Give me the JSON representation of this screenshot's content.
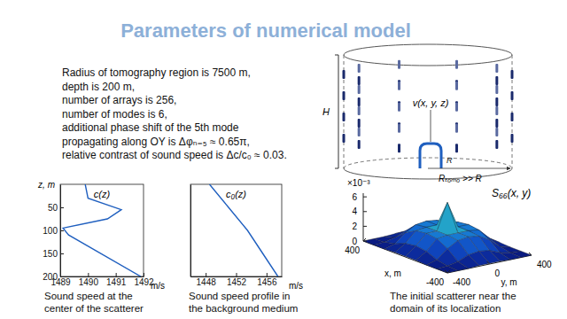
{
  "slide": {
    "title": "Parameters of numerical model",
    "text": [
      "Radius of tomography region is 7500 m,",
      "depth is 200 m,",
      "number of arrays is 256,",
      "number of modes is 6,",
      "additional phase shift of the 5th mode",
      "propagating along OY is Δφₙ₌₅ ≈ 0.65π,",
      "relative contrast of sound speed is Δc/c₀ ≈ 0.03."
    ],
    "diagram": {
      "scatterer_label": "v(x, y, z)",
      "depth_label": "H",
      "radius_label": "Rₜₒₘₒ >> R",
      "scatterer_radius_label": "R"
    }
  },
  "chart_data": [
    {
      "type": "line",
      "title": "c(z)",
      "xlabel": "m/s",
      "ylabel": "z, m",
      "x": [
        1489.9,
        1490.0,
        1491.2,
        1490.7,
        1489.1,
        1489.3,
        1491.9
      ],
      "values": [
        0,
        30,
        55,
        75,
        95,
        110,
        200
      ],
      "xlim": [
        1489,
        1492
      ],
      "xticks": [
        1489,
        1490,
        1491,
        1492
      ],
      "ylim": [
        0,
        200
      ],
      "yticks": [
        50,
        100,
        150,
        200
      ],
      "color": "#1f5fbf",
      "annotations": [
        "Sound speed at the",
        "center of the scatterer"
      ]
    },
    {
      "type": "line",
      "title": "c₀(z)",
      "xlabel": "m/s",
      "x": [
        1448.5,
        1451,
        1453.5,
        1455.5,
        1457.5
      ],
      "values": [
        0,
        50,
        100,
        150,
        200
      ],
      "xlim": [
        1446,
        1458
      ],
      "xticks": [
        1448,
        1452,
        1456
      ],
      "ylim": [
        0,
        200
      ],
      "tick_labels": "x",
      "color": "#1f5fbf",
      "annotations": [
        "Sound speed profile in",
        "the background medium"
      ]
    },
    {
      "type": "surface",
      "title": "S₆₆(x, y)",
      "xlabel": "x, m",
      "ylabel": "y, m",
      "zlabel": "×10⁻³",
      "x": [
        -400,
        -300,
        -200,
        -100,
        0,
        100,
        200,
        300,
        400
      ],
      "y": [
        -400,
        -300,
        -200,
        -100,
        0,
        100,
        200,
        300,
        400
      ],
      "values": [
        [
          0,
          0,
          0,
          0.1,
          0.1,
          0.1,
          0,
          0,
          0
        ],
        [
          0,
          0.1,
          0.4,
          1.0,
          1.2,
          1.0,
          0.4,
          0.1,
          0
        ],
        [
          0,
          0.4,
          1.6,
          2.4,
          2.6,
          2.4,
          1.6,
          0.4,
          0
        ],
        [
          0.1,
          1.0,
          2.4,
          2.6,
          2.6,
          2.6,
          2.4,
          1.0,
          0.1
        ],
        [
          0.1,
          1.2,
          2.6,
          2.6,
          6.2,
          2.6,
          2.6,
          1.2,
          0.1
        ],
        [
          0.1,
          1.0,
          2.4,
          2.6,
          2.6,
          2.6,
          2.4,
          1.0,
          0.1
        ],
        [
          0,
          0.4,
          1.6,
          2.4,
          2.6,
          2.4,
          1.6,
          0.4,
          0
        ],
        [
          0,
          0.1,
          0.4,
          1.0,
          1.2,
          1.0,
          0.4,
          0.1,
          0
        ],
        [
          0,
          0,
          0,
          0.1,
          0.1,
          0.1,
          0,
          0,
          0
        ]
      ],
      "xlim": [
        -400,
        400
      ],
      "ylim": [
        -400,
        400
      ],
      "zlim": [
        0,
        6.5
      ],
      "xticks": [
        -400,
        400
      ],
      "yticks": [
        -400,
        0,
        400
      ],
      "zticks": [
        0,
        2,
        4,
        6
      ],
      "annotations": [
        "The initial scatterer near the",
        "domain of its localization"
      ]
    }
  ]
}
